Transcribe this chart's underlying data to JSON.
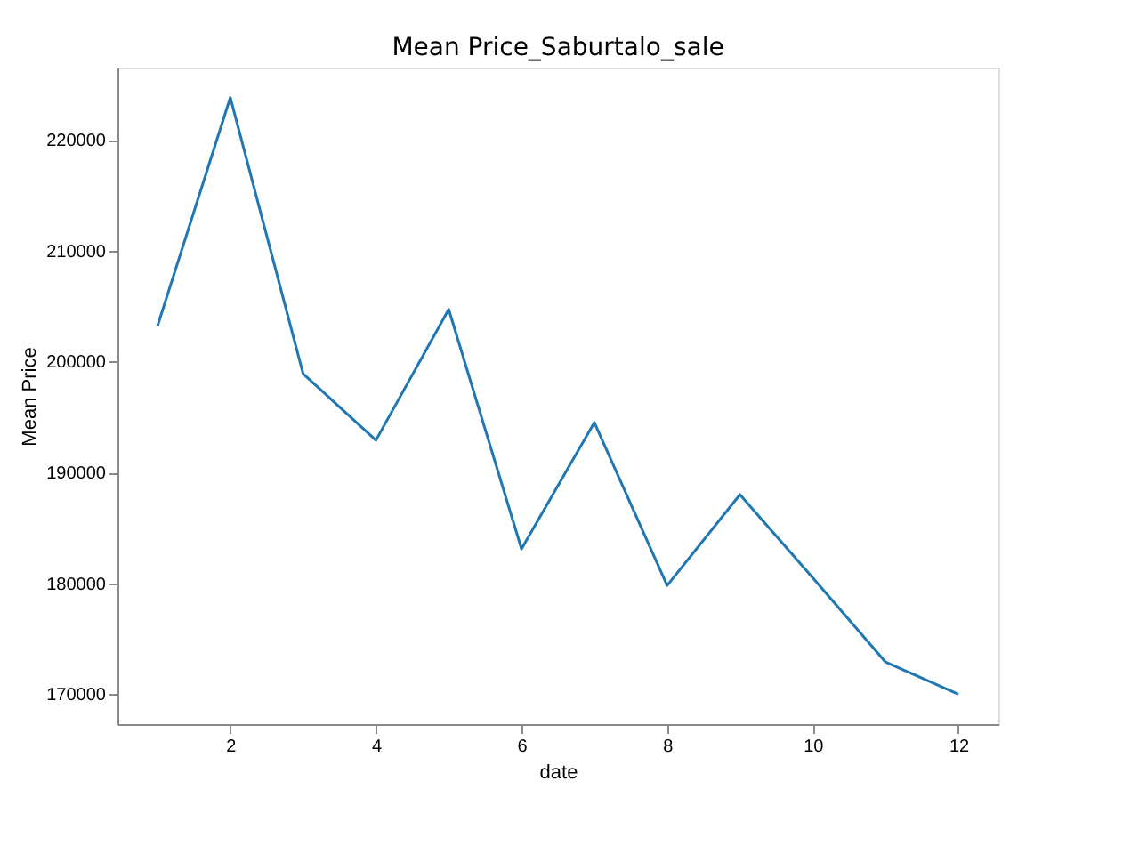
{
  "chart_data": {
    "type": "line",
    "title": "Mean Price_Saburtalo_sale",
    "xlabel": "date",
    "ylabel": "Mean Price",
    "x": [
      1,
      2,
      3,
      4,
      5,
      6,
      7,
      8,
      9,
      10,
      11,
      12
    ],
    "series": [
      {
        "color": "#1f77b4",
        "values": [
          203200,
          223800,
          198900,
          192900,
          204700,
          183100,
          194500,
          179800,
          188000,
          180500,
          172900,
          170000
        ]
      }
    ],
    "xlim": [
      0.45,
      12.55
    ],
    "ylim": [
      167300,
      226500
    ],
    "xticks": [
      2,
      4,
      6,
      8,
      10,
      12
    ],
    "yticks": [
      170000,
      180000,
      190000,
      200000,
      210000,
      220000
    ],
    "grid": false,
    "legend": false,
    "marker": "none",
    "line_style": "solid"
  }
}
